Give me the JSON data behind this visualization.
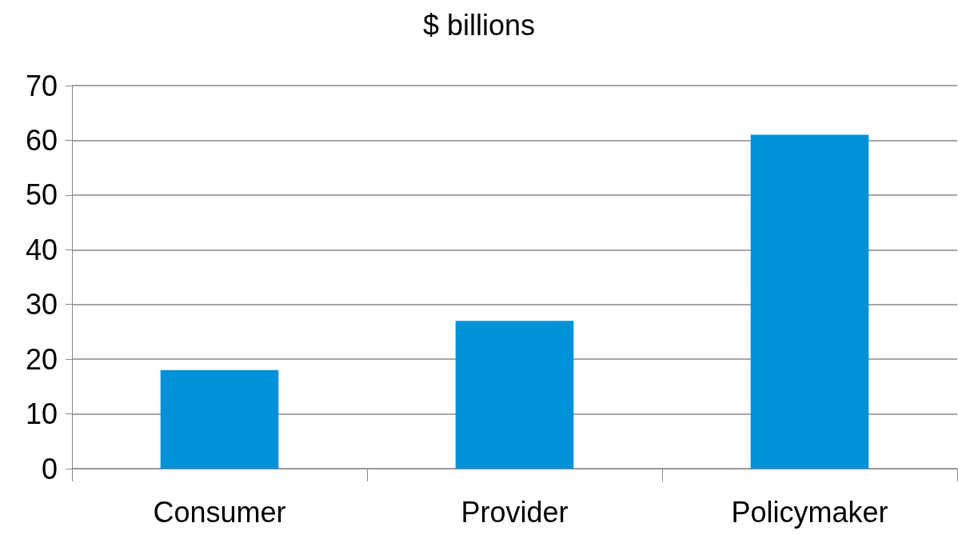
{
  "chart_data": {
    "type": "bar",
    "title": "$ billions",
    "categories": [
      "Consumer",
      "Provider",
      "Policymaker"
    ],
    "values": [
      18,
      27,
      61
    ],
    "color": "#0091d9",
    "ylim": [
      0,
      70
    ],
    "yticks": [
      0,
      10,
      20,
      30,
      40,
      50,
      60,
      70
    ],
    "grid": "y"
  }
}
